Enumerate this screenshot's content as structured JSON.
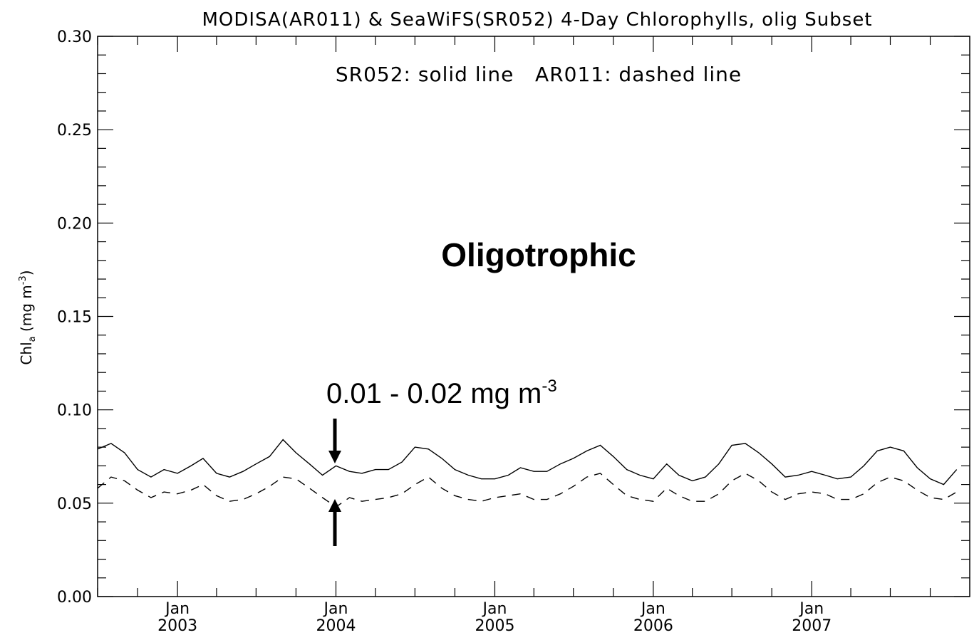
{
  "chart_data": {
    "type": "line",
    "title": "MODISA(AR011) & SeaWiFS(SR052) 4-Day Chlorophylls, olig Subset",
    "ylabel": "Chl",
    "ylabel_subscript": "a",
    "ylabel_units_prefix": "(mg m",
    "ylabel_units_exp": "-3",
    "ylabel_units_suffix": ")",
    "ylim": [
      0.0,
      0.3
    ],
    "yticks": [
      "0.00",
      "0.05",
      "0.10",
      "0.15",
      "0.20",
      "0.25",
      "0.30"
    ],
    "xlim": [
      "2002-07-01",
      "2007-12-31"
    ],
    "xticks": [
      {
        "month": "Jan",
        "year": "2003"
      },
      {
        "month": "Jan",
        "year": "2004"
      },
      {
        "month": "Jan",
        "year": "2005"
      },
      {
        "month": "Jan",
        "year": "2006"
      },
      {
        "month": "Jan",
        "year": "2007"
      }
    ],
    "legend_note": "SR052: solid line   AR011: dashed line",
    "annotations": {
      "label": "Oligotrophic",
      "range_text": "0.01 - 0.02 mg m",
      "range_exp": "-3"
    },
    "series": [
      {
        "name": "SR052",
        "style": "solid",
        "x": [
          "2002-07-01",
          "2002-08-01",
          "2002-09-01",
          "2002-10-01",
          "2002-11-01",
          "2002-12-01",
          "2003-01-01",
          "2003-02-01",
          "2003-03-01",
          "2003-04-01",
          "2003-05-01",
          "2003-06-01",
          "2003-07-01",
          "2003-08-01",
          "2003-09-01",
          "2003-10-01",
          "2003-11-01",
          "2003-12-01",
          "2004-01-01",
          "2004-02-01",
          "2004-03-01",
          "2004-04-01",
          "2004-05-01",
          "2004-06-01",
          "2004-07-01",
          "2004-08-01",
          "2004-09-01",
          "2004-10-01",
          "2004-11-01",
          "2004-12-01",
          "2005-01-01",
          "2005-02-01",
          "2005-03-01",
          "2005-04-01",
          "2005-05-01",
          "2005-06-01",
          "2005-07-01",
          "2005-08-01",
          "2005-09-01",
          "2005-10-01",
          "2005-11-01",
          "2005-12-01",
          "2006-01-01",
          "2006-02-01",
          "2006-03-01",
          "2006-04-01",
          "2006-05-01",
          "2006-06-01",
          "2006-07-01",
          "2006-08-01",
          "2006-09-01",
          "2006-10-01",
          "2006-11-01",
          "2006-12-01",
          "2007-01-01",
          "2007-02-01",
          "2007-03-01",
          "2007-04-01",
          "2007-05-01",
          "2007-06-01",
          "2007-07-01",
          "2007-08-01",
          "2007-09-01",
          "2007-10-01",
          "2007-11-01",
          "2007-12-01"
        ],
        "values": [
          0.079,
          0.082,
          0.077,
          0.068,
          0.064,
          0.068,
          0.066,
          0.07,
          0.074,
          0.066,
          0.064,
          0.067,
          0.071,
          0.075,
          0.084,
          0.077,
          0.071,
          0.065,
          0.07,
          0.067,
          0.066,
          0.068,
          0.068,
          0.072,
          0.08,
          0.079,
          0.074,
          0.068,
          0.065,
          0.063,
          0.063,
          0.065,
          0.069,
          0.067,
          0.067,
          0.071,
          0.074,
          0.078,
          0.081,
          0.075,
          0.068,
          0.065,
          0.063,
          0.071,
          0.065,
          0.062,
          0.064,
          0.071,
          0.081,
          0.082,
          0.077,
          0.071,
          0.064,
          0.065,
          0.067,
          0.065,
          0.063,
          0.064,
          0.07,
          0.078,
          0.08,
          0.078,
          0.069,
          0.063,
          0.06,
          0.068
        ]
      },
      {
        "name": "AR011",
        "style": "dashed",
        "x": [
          "2002-07-01",
          "2002-08-01",
          "2002-09-01",
          "2002-10-01",
          "2002-11-01",
          "2002-12-01",
          "2003-01-01",
          "2003-02-01",
          "2003-03-01",
          "2003-04-01",
          "2003-05-01",
          "2003-06-01",
          "2003-07-01",
          "2003-08-01",
          "2003-09-01",
          "2003-10-01",
          "2003-11-01",
          "2003-12-01",
          "2004-01-01",
          "2004-02-01",
          "2004-03-01",
          "2004-04-01",
          "2004-05-01",
          "2004-06-01",
          "2004-07-01",
          "2004-08-01",
          "2004-09-01",
          "2004-10-01",
          "2004-11-01",
          "2004-12-01",
          "2005-01-01",
          "2005-02-01",
          "2005-03-01",
          "2005-04-01",
          "2005-05-01",
          "2005-06-01",
          "2005-07-01",
          "2005-08-01",
          "2005-09-01",
          "2005-10-01",
          "2005-11-01",
          "2005-12-01",
          "2006-01-01",
          "2006-02-01",
          "2006-03-01",
          "2006-04-01",
          "2006-05-01",
          "2006-06-01",
          "2006-07-01",
          "2006-08-01",
          "2006-09-01",
          "2006-10-01",
          "2006-11-01",
          "2006-12-01",
          "2007-01-01",
          "2007-02-01",
          "2007-03-01",
          "2007-04-01",
          "2007-05-01",
          "2007-06-01",
          "2007-07-01",
          "2007-08-01",
          "2007-09-01",
          "2007-10-01",
          "2007-11-01",
          "2007-12-01"
        ],
        "values": [
          0.058,
          0.064,
          0.062,
          0.057,
          0.053,
          0.056,
          0.055,
          0.057,
          0.06,
          0.054,
          0.051,
          0.052,
          0.055,
          0.059,
          0.064,
          0.063,
          0.058,
          0.053,
          0.048,
          0.053,
          0.051,
          0.052,
          0.053,
          0.055,
          0.06,
          0.064,
          0.058,
          0.054,
          0.052,
          0.051,
          0.053,
          0.054,
          0.055,
          0.052,
          0.052,
          0.055,
          0.059,
          0.064,
          0.066,
          0.06,
          0.054,
          0.052,
          0.051,
          0.058,
          0.054,
          0.051,
          0.051,
          0.055,
          0.062,
          0.066,
          0.062,
          0.056,
          0.052,
          0.055,
          0.056,
          0.055,
          0.052,
          0.052,
          0.055,
          0.061,
          0.064,
          0.062,
          0.057,
          0.053,
          0.052,
          0.056
        ]
      }
    ],
    "grid": false,
    "legend_placement": "top-center"
  }
}
